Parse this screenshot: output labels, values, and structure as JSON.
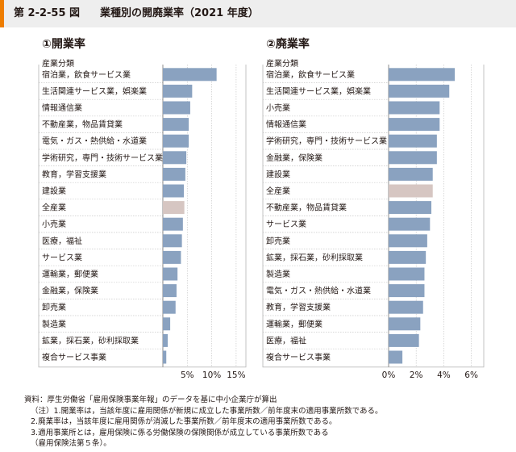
{
  "header": {
    "figure_number": "第 2-2-55 図",
    "title": "業種別の開廃業率（2021 年度）"
  },
  "chart_data": [
    {
      "type": "bar",
      "orientation": "horizontal",
      "title": "①開業率",
      "category_header": "産業分類",
      "categories": [
        "宿泊業，飲食サービス業",
        "生活関連サービス業，娯楽業",
        "情報通信業",
        "不動産業，物品賃貸業",
        "電気・ガス・熱供給・水道業",
        "学術研究，専門・技術サービス業",
        "教育，学習支援業",
        "建設業",
        "全産業",
        "小売業",
        "医療，福祉",
        "サービス業",
        "運輸業，郵便業",
        "金融業，保険業",
        "卸売業",
        "製造業",
        "鉱業，採石業，砂利採取業",
        "複合サービス事業"
      ],
      "values": [
        11.0,
        6.0,
        5.6,
        5.3,
        5.3,
        4.8,
        4.6,
        4.3,
        4.4,
        4.1,
        3.9,
        3.7,
        3.0,
        2.8,
        2.6,
        1.5,
        1.0,
        0.7
      ],
      "highlight": "全産業",
      "xlim": [
        0,
        17
      ],
      "xticks": [
        5,
        10,
        15
      ],
      "xtick_labels": [
        "5%",
        "10%",
        "15%"
      ],
      "grid": true,
      "colors": {
        "bar": "#8aa2c0",
        "highlight": "#d6c6c2"
      }
    },
    {
      "type": "bar",
      "orientation": "horizontal",
      "title": "②廃業率",
      "category_header": "産業分類",
      "categories": [
        "宿泊業，飲食サービス業",
        "生活関連サービス業，娯楽業",
        "小売業",
        "情報通信業",
        "学術研究，専門・技術サービス業",
        "金融業，保険業",
        "建設業",
        "全産業",
        "不動産業，物品賃貸業",
        "サービス業",
        "卸売業",
        "鉱業，採石業，砂利採取業",
        "製造業",
        "電気・ガス・熱供給・水道業",
        "教育，学習支援業",
        "運輸業，郵便業",
        "医療，福祉",
        "複合サービス事業"
      ],
      "values": [
        4.8,
        4.4,
        3.7,
        3.7,
        3.5,
        3.5,
        3.2,
        3.2,
        3.1,
        3.0,
        2.8,
        2.7,
        2.6,
        2.6,
        2.5,
        2.3,
        2.2,
        1.0
      ],
      "highlight": "全産業",
      "xlim": [
        0,
        6.9
      ],
      "xticks": [
        0,
        2,
        4,
        6
      ],
      "xtick_labels": [
        "0%",
        "2%",
        "4%",
        "6%"
      ],
      "grid": true,
      "colors": {
        "bar": "#8aa2c0",
        "highlight": "#d6c6c2"
      }
    }
  ],
  "notes": [
    "資料：厚生労働省「雇用保険事業年報」のデータを基に中小企業庁が算出",
    "（注）1.開業率は，当該年度に雇用関係が新規に成立した事業所数／前年度末の適用事業所数である。",
    "2.廃業率は，当該年度に雇用関係が消滅した事業所数／前年度末の適用事業所数である。",
    "3.適用事業所とは，雇用保険に係る労働保険の保険関係が成立している事業所数である",
    "（雇用保険法第５条）。"
  ]
}
